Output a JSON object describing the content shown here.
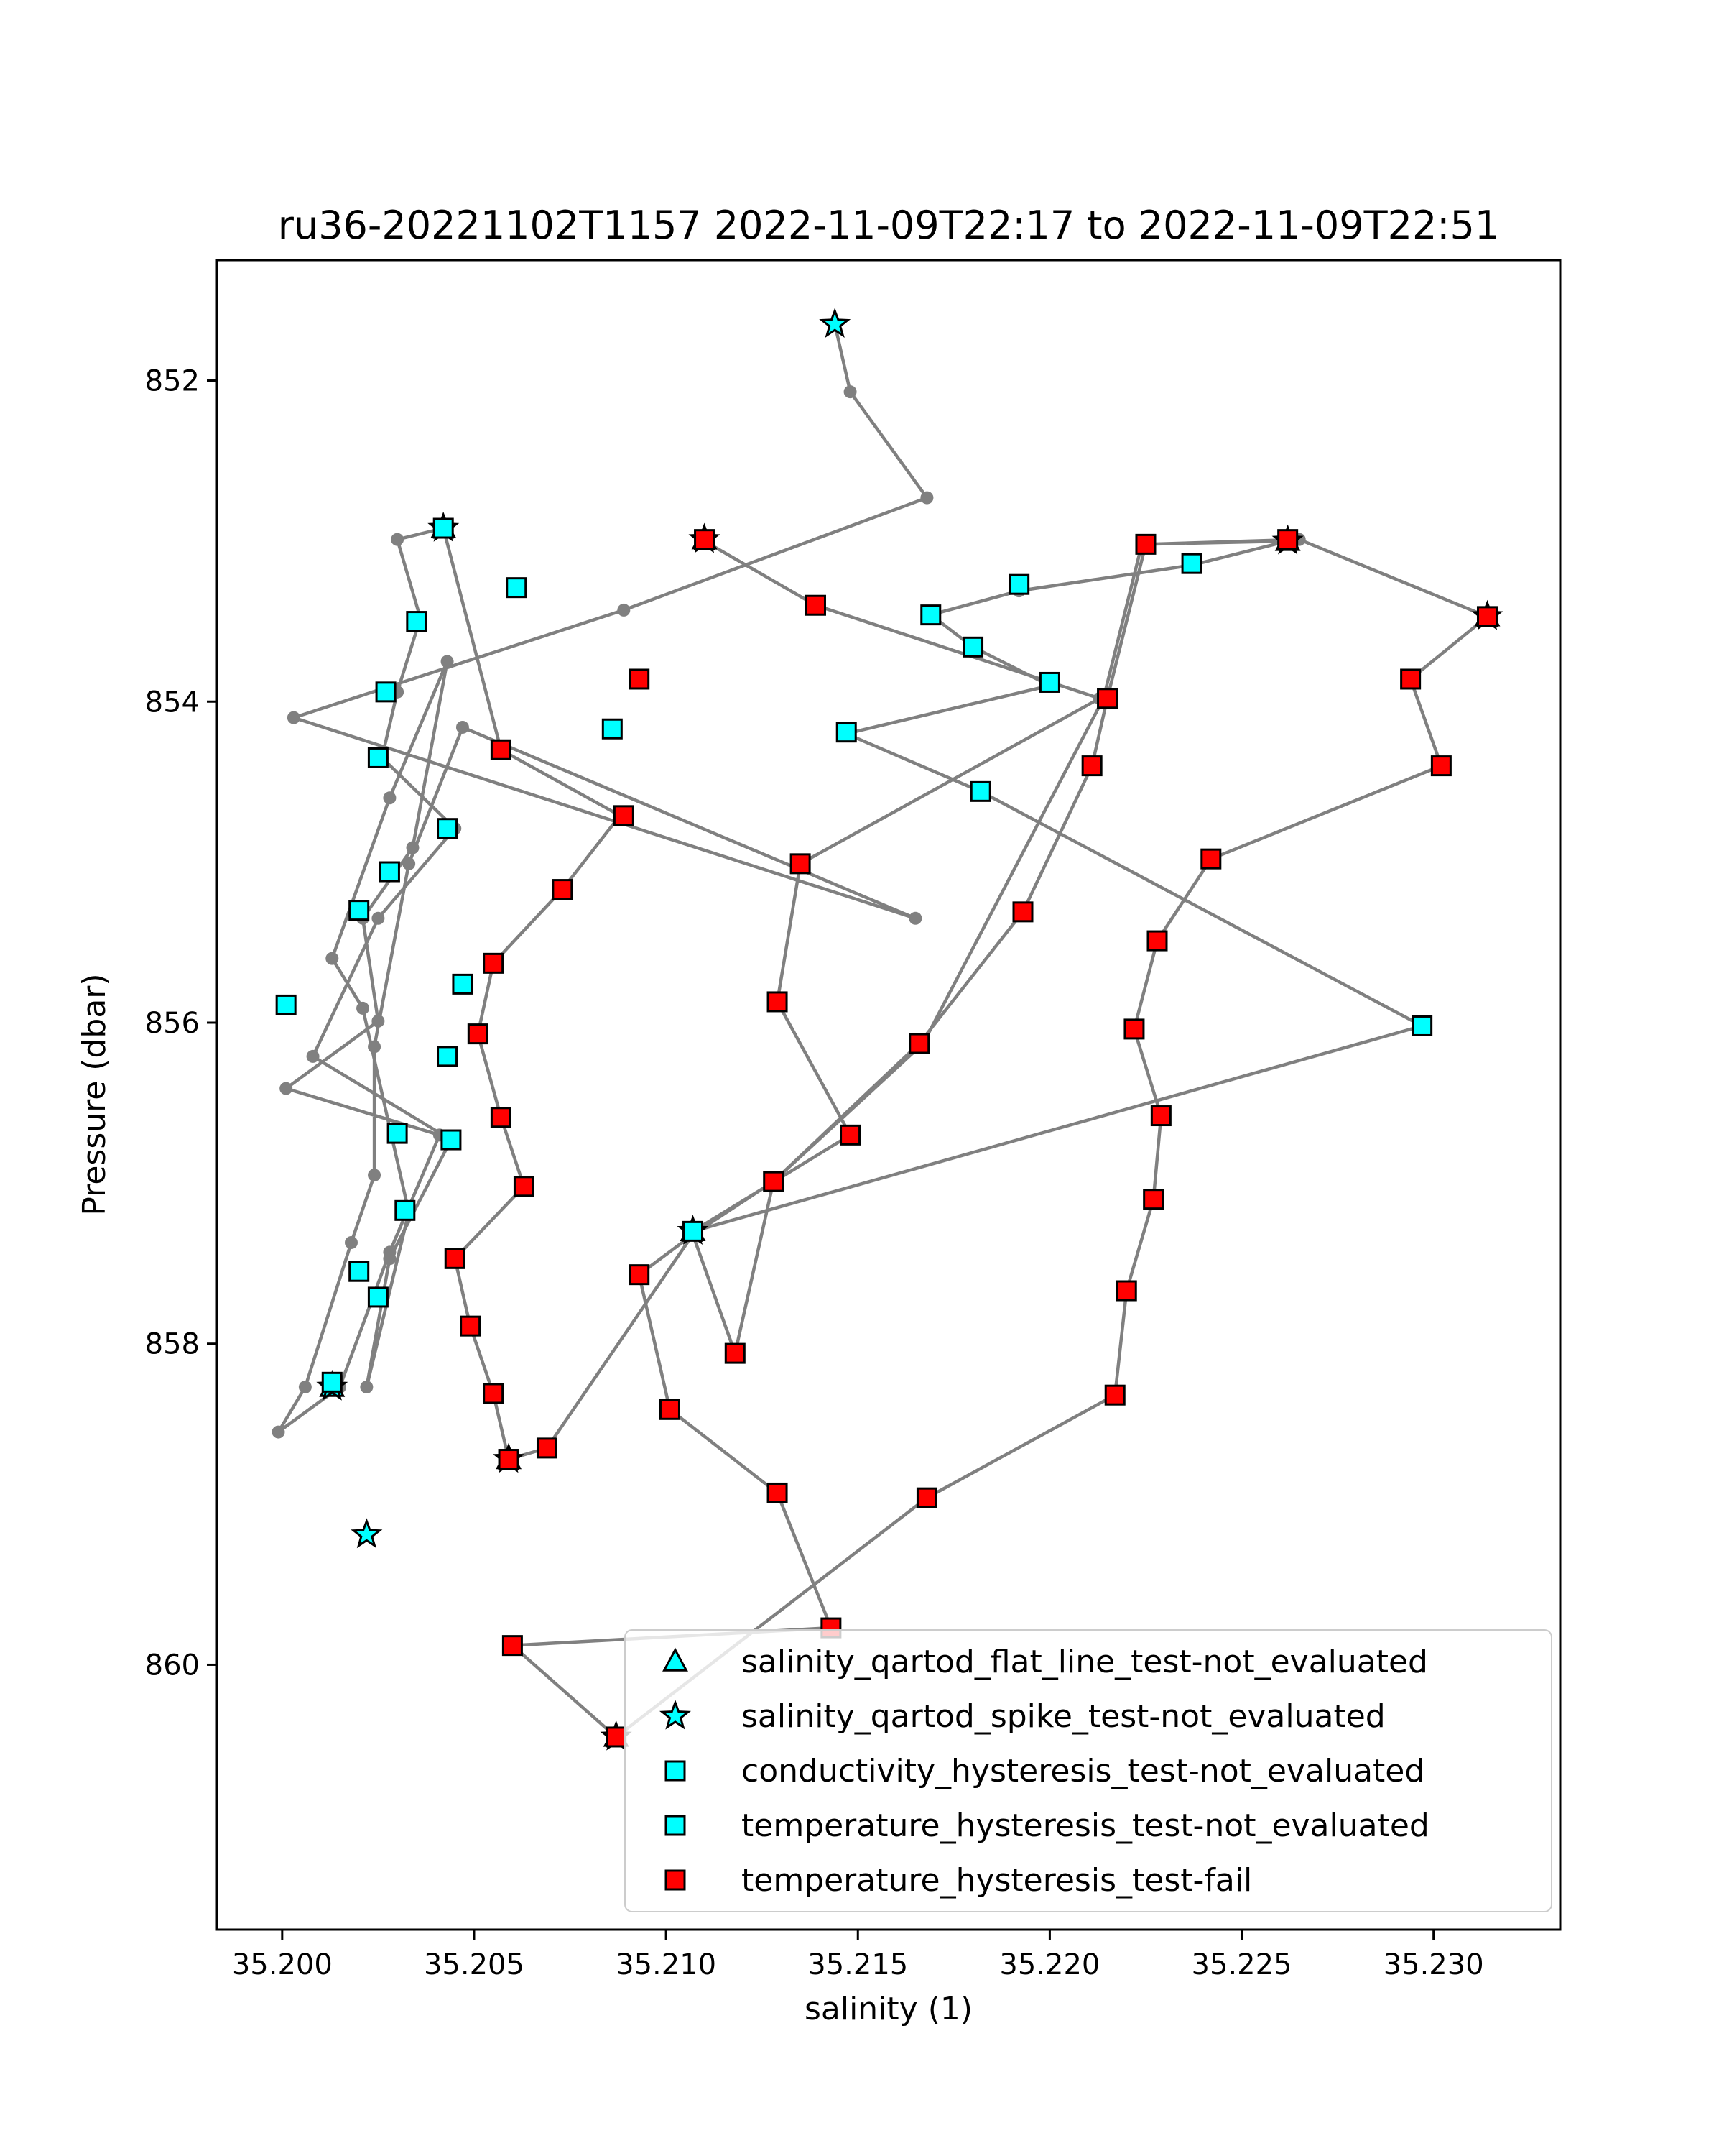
{
  "chart_data": {
    "type": "scatter",
    "title": "ru36-20221102T1157 2022-11-09T22:17 to 2022-11-09T22:51",
    "xlabel": "salinity (1)",
    "ylabel": "Pressure (dbar)",
    "xlim": [
      35.1983,
      35.2333
    ],
    "ylim": [
      861.65,
      851.25
    ],
    "y_inverted": true,
    "grid": false,
    "legend_position": "lower-right",
    "x_ticks": [
      "35.200",
      "35.205",
      "35.210",
      "35.215",
      "35.220",
      "35.225",
      "35.230"
    ],
    "x_tick_values": [
      35.2,
      35.205,
      35.21,
      35.215,
      35.22,
      35.225,
      35.23
    ],
    "y_ticks": [
      "852",
      "854",
      "856",
      "858",
      "860"
    ],
    "y_tick_values": [
      852,
      854,
      856,
      858,
      860
    ],
    "line_color": "#808080",
    "colors": {
      "cyan": "#00ffff",
      "red": "#ff0000",
      "edge": "#000000",
      "gray": "#808080"
    },
    "profile": [
      [
        35.2144,
        851.65
      ],
      [
        35.2148,
        852.07
      ],
      [
        35.2168,
        852.73
      ],
      [
        35.2089,
        853.43
      ],
      [
        35.2003,
        854.1
      ],
      [
        35.2165,
        855.35
      ],
      [
        35.2047,
        854.16
      ],
      [
        35.2033,
        855.01
      ],
      [
        35.2024,
        856.15
      ],
      [
        35.2024,
        856.95
      ],
      [
        35.2018,
        857.37
      ],
      [
        35.2006,
        858.27
      ],
      [
        35.1999,
        858.55
      ],
      [
        35.2015,
        858.27
      ],
      [
        35.2028,
        857.43
      ],
      [
        35.2041,
        856.7
      ],
      [
        35.2001,
        856.41
      ],
      [
        35.2025,
        855.99
      ],
      [
        35.2021,
        855.35
      ],
      [
        35.2034,
        854.91
      ],
      [
        35.2043,
        853.75
      ],
      [
        35.2028,
        854.6
      ],
      [
        35.2013,
        855.6
      ],
      [
        35.2021,
        855.91
      ],
      [
        35.2033,
        857.18
      ],
      [
        35.2022,
        858.27
      ],
      [
        35.2028,
        857.47
      ],
      [
        35.2044,
        856.73
      ],
      [
        35.2008,
        856.21
      ],
      [
        35.2025,
        855.35
      ],
      [
        35.2045,
        854.79
      ],
      [
        35.2026,
        854.35
      ],
      [
        35.203,
        853.94
      ],
      [
        35.2036,
        853.48
      ],
      [
        35.203,
        852.99
      ],
      [
        35.2042,
        852.92
      ],
      [
        35.2057,
        854.3
      ],
      [
        35.2088,
        854.71
      ],
      [
        35.2073,
        855.17
      ],
      [
        35.2055,
        855.63
      ],
      [
        35.2051,
        856.07
      ],
      [
        35.2057,
        856.59
      ],
      [
        35.2063,
        857.02
      ],
      [
        35.2045,
        857.47
      ],
      [
        35.2049,
        857.89
      ],
      [
        35.2055,
        858.31
      ],
      [
        35.2059,
        858.72
      ],
      [
        35.2069,
        858.65
      ],
      [
        35.2107,
        857.32
      ],
      [
        35.2093,
        857.57
      ],
      [
        35.2101,
        858.41
      ],
      [
        35.2129,
        858.93
      ],
      [
        35.2143,
        859.77
      ],
      [
        35.206,
        859.88
      ],
      [
        35.2087,
        860.45
      ],
      [
        35.2168,
        858.96
      ],
      [
        35.2217,
        858.32
      ],
      [
        35.222,
        857.67
      ],
      [
        35.2227,
        857.1
      ],
      [
        35.2229,
        856.58
      ],
      [
        35.2222,
        856.04
      ],
      [
        35.2228,
        855.49
      ],
      [
        35.2242,
        854.98
      ],
      [
        35.2302,
        854.4
      ],
      [
        35.2294,
        853.86
      ],
      [
        35.2314,
        853.47
      ],
      [
        35.2265,
        852.99
      ],
      [
        35.2225,
        853.02
      ],
      [
        35.2215,
        853.98
      ],
      [
        35.2211,
        854.4
      ],
      [
        35.2193,
        855.31
      ],
      [
        35.2166,
        856.13
      ],
      [
        35.2128,
        856.99
      ],
      [
        35.2107,
        857.32
      ],
      [
        35.2118,
        858.06
      ],
      [
        35.2128,
        856.99
      ],
      [
        35.2167,
        856.13
      ],
      [
        35.2214,
        853.98
      ],
      [
        35.2224,
        853.02
      ],
      [
        35.2262,
        853.0
      ],
      [
        35.2237,
        853.15
      ],
      [
        35.2192,
        853.31
      ],
      [
        35.2169,
        853.46
      ],
      [
        35.218,
        853.66
      ],
      [
        35.22,
        853.9
      ],
      [
        35.2147,
        854.2
      ],
      [
        35.2182,
        854.56
      ],
      [
        35.2297,
        856.02
      ],
      [
        35.2107,
        857.3
      ],
      [
        35.2148,
        856.7
      ],
      [
        35.2129,
        855.87
      ],
      [
        35.2135,
        855.01
      ],
      [
        35.2213,
        853.98
      ],
      [
        35.2139,
        853.4
      ],
      [
        35.211,
        853.0
      ],
      [
        35.2111,
        852.99
      ]
    ],
    "series": [
      {
        "name": "salinity_qartod_flat_line_test-not_evaluated",
        "marker": "triangle",
        "color": "#00ffff",
        "x": [
          35.2042,
          35.211,
          35.2262,
          35.2314,
          35.2013,
          35.2059,
          35.2107,
          35.2087
        ],
        "y": [
          852.92,
          852.99,
          853.0,
          853.47,
          858.27,
          858.72,
          857.3,
          860.45
        ]
      },
      {
        "name": "salinity_qartod_spike_test-not_evaluated",
        "marker": "star",
        "color": "#00ffff",
        "x": [
          35.2144,
          35.2042,
          35.211,
          35.2262,
          35.2314,
          35.2013,
          35.2022,
          35.2059,
          35.2107,
          35.2087
        ],
        "y": [
          851.65,
          852.92,
          852.99,
          853.0,
          853.47,
          858.27,
          859.19,
          858.72,
          857.3,
          860.45
        ]
      },
      {
        "name": "conductivity_hysteresis_test-not_evaluated",
        "marker": "square",
        "color": "#00ffff",
        "x": [
          35.2042,
          35.2035,
          35.2027,
          35.2025,
          35.2043,
          35.2028,
          35.202,
          35.2047,
          35.2001,
          35.2043,
          35.203,
          35.2044,
          35.2032,
          35.202,
          35.2025,
          35.2013,
          35.2061,
          35.2086,
          35.2169,
          35.2192,
          35.218,
          35.22,
          35.2147,
          35.2182,
          35.2237,
          35.2297,
          35.2107
        ],
        "y": [
          852.92,
          853.5,
          853.94,
          854.35,
          854.79,
          855.06,
          855.3,
          855.76,
          855.89,
          856.21,
          856.69,
          856.73,
          857.17,
          857.55,
          857.71,
          858.24,
          853.29,
          854.17,
          853.46,
          853.27,
          853.66,
          853.88,
          854.19,
          854.56,
          853.14,
          856.02,
          857.3
        ]
      },
      {
        "name": "temperature_hysteresis_test-not_evaluated",
        "marker": "square",
        "color": "#00ffff",
        "x": [],
        "y": []
      },
      {
        "name": "temperature_hysteresis_test-fail",
        "marker": "square",
        "color": "#ff0000",
        "x": [
          35.211,
          35.2139,
          35.2093,
          35.2057,
          35.2089,
          35.2073,
          35.2055,
          35.2051,
          35.2057,
          35.2063,
          35.2045,
          35.2049,
          35.2055,
          35.2059,
          35.2069,
          35.2093,
          35.2101,
          35.2129,
          35.2143,
          35.206,
          35.2087,
          35.2168,
          35.2217,
          35.222,
          35.2227,
          35.2229,
          35.2222,
          35.2228,
          35.2242,
          35.2302,
          35.2294,
          35.2314,
          35.2262,
          35.2225,
          35.2215,
          35.2211,
          35.2193,
          35.2166,
          35.2128,
          35.2118,
          35.2129,
          35.2135,
          35.2148
        ],
        "y": [
          852.99,
          853.4,
          853.86,
          854.3,
          854.71,
          855.17,
          855.63,
          856.07,
          856.59,
          857.02,
          857.47,
          857.89,
          858.31,
          858.72,
          858.65,
          857.57,
          858.41,
          858.93,
          859.77,
          859.88,
          860.45,
          858.96,
          858.32,
          857.67,
          857.1,
          856.58,
          856.04,
          855.49,
          854.98,
          854.4,
          853.86,
          853.47,
          852.99,
          853.02,
          853.98,
          854.4,
          855.31,
          856.13,
          856.99,
          858.06,
          855.87,
          855.01,
          856.7
        ]
      }
    ]
  }
}
